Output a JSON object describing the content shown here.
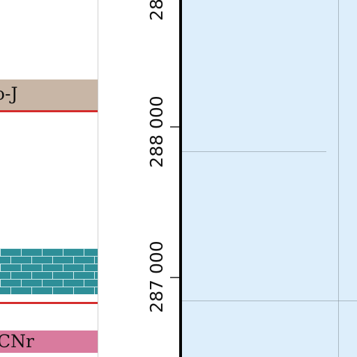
{
  "legend": {
    "items": [
      {
        "code": "o-J",
        "color": "#c8b6a6"
      },
      {
        "code": "",
        "color": "#2e8f98",
        "pattern": "brick"
      },
      {
        "code": "CNr",
        "color": "#d97b9e"
      }
    ],
    "boundary_color": "#d42b2b"
  },
  "map": {
    "background_color": "#ddeefb",
    "frame_color": "#000000",
    "grid_color": "#7e8a92"
  },
  "coordinates": {
    "northings": [
      {
        "text": "28",
        "label": "truncated-top"
      },
      {
        "text": "288 000"
      },
      {
        "text": "287 000"
      }
    ]
  }
}
